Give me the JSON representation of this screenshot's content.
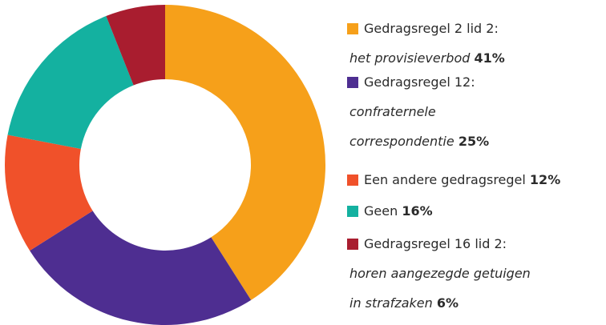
{
  "chart_data": {
    "type": "pie",
    "categories": [
      [
        "Gedragsregel 2 lid 2:",
        "het provisieverbod"
      ],
      [
        "Gedragsregel 12:",
        "confraternele",
        "correspondentie"
      ],
      [
        "Een andere gedragsregel"
      ],
      [
        "Geen"
      ],
      [
        "Gedragsregel 16 lid 2:",
        "horen aangezegde getuigen",
        "in strafzaken"
      ]
    ],
    "values": [
      41,
      25,
      12,
      16,
      6
    ],
    "value_labels": [
      "41%",
      "25%",
      "12%",
      "16%",
      "6%"
    ],
    "colors": [
      "#f6a01a",
      "#4e2e91",
      "#f0512a",
      "#14b1a0",
      "#a91d2f"
    ]
  }
}
